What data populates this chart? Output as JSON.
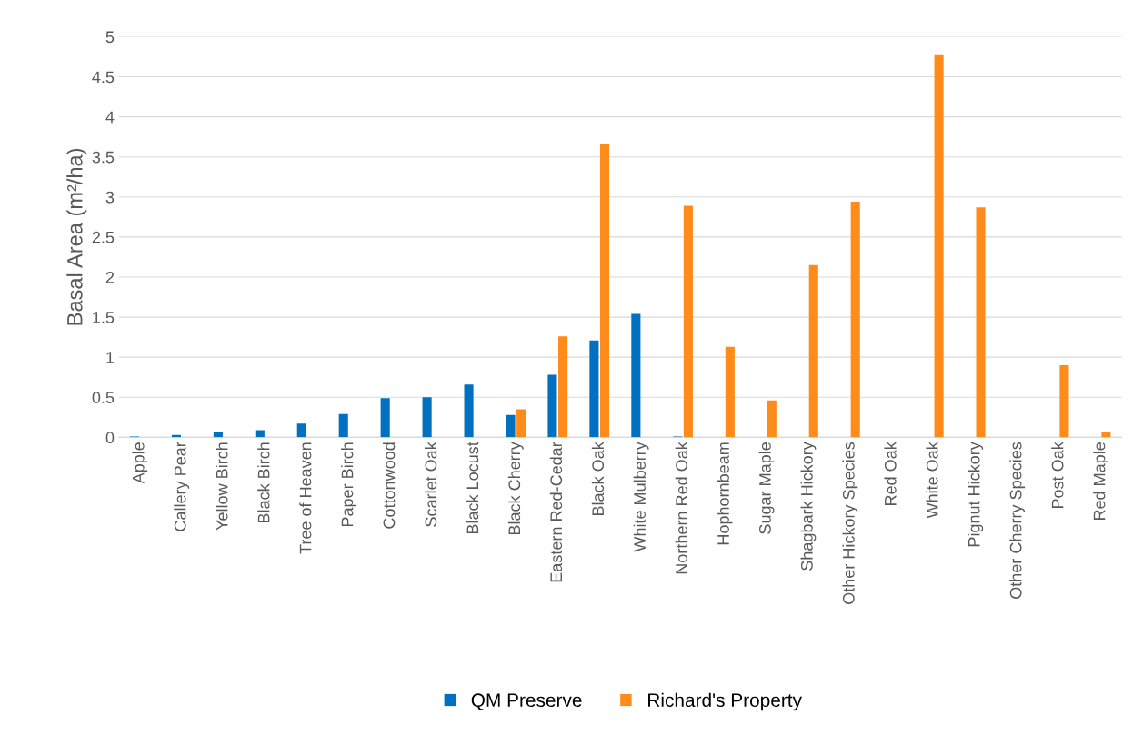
{
  "chart_data": {
    "type": "bar",
    "ylabel": "Basal Area (m²/ha)",
    "categories": [
      "Apple",
      "Callery Pear",
      "Yellow Birch",
      "Black Birch",
      "Tree of Heaven",
      "Paper Birch",
      "Cottonwood",
      "Scarlet Oak",
      "Black Locust",
      "Black Cherry",
      "Eastern Red-Cedar",
      "Black Oak",
      "White Mulberry",
      "Northern Red Oak",
      "Hophornbeam",
      "Sugar Maple",
      "Shagbark Hickory",
      "Other Hickory Species",
      "Red Oak",
      "White Oak",
      "Pignut Hickory",
      "Other Cherry Species",
      "Post Oak",
      "Red Maple"
    ],
    "series": [
      {
        "name": "QM Preserve",
        "color": "#0070c0",
        "values": [
          0.01,
          0.03,
          0.06,
          0.09,
          0.17,
          0.29,
          0.49,
          0.5,
          0.66,
          0.28,
          0.78,
          1.21,
          1.54,
          0.01,
          0,
          0,
          0,
          0,
          0,
          0,
          0,
          0,
          0,
          0
        ]
      },
      {
        "name": "Richard's Property",
        "color": "#ff8c1a",
        "values": [
          0,
          0,
          0,
          0,
          0,
          0,
          0,
          0,
          0,
          0.35,
          1.26,
          3.66,
          0,
          2.89,
          1.13,
          0.46,
          2.15,
          2.94,
          0,
          4.78,
          2.87,
          0,
          0.9,
          0.06
        ]
      }
    ],
    "ylim": [
      0,
      5
    ],
    "yticks": [
      0,
      0.5,
      1,
      1.5,
      2,
      2.5,
      3,
      3.5,
      4,
      4.5,
      5
    ],
    "grid": "y",
    "legend": "bottom"
  }
}
